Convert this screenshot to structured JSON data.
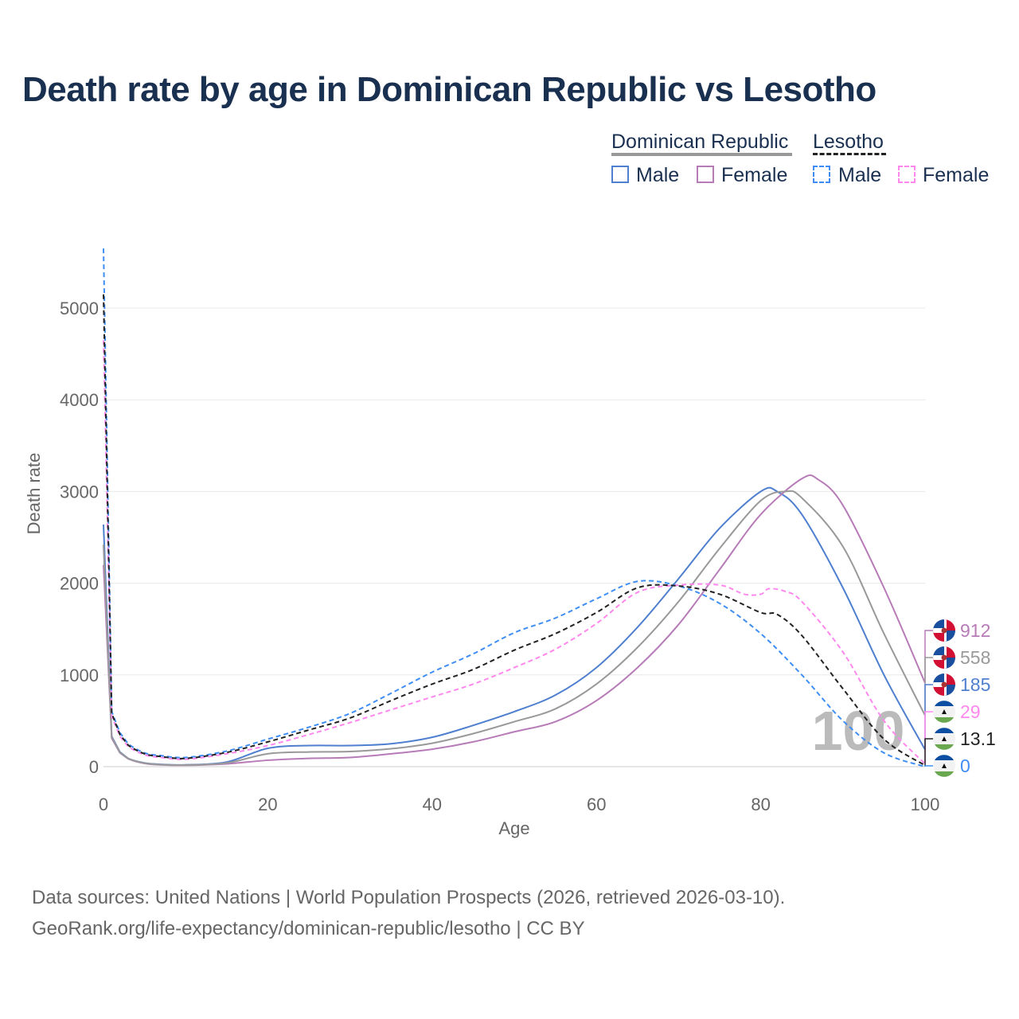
{
  "title": "Death rate by age in Dominican Republic vs Lesotho",
  "legend": {
    "countries": [
      {
        "name": "Dominican Republic",
        "color": "#999999"
      },
      {
        "name": "Lesotho",
        "color": "#222222"
      }
    ],
    "items": [
      "Male",
      "Female",
      "Male",
      "Female"
    ]
  },
  "footer": {
    "line1": "Data sources: United Nations | World Population Prospects (2026, retrieved 2026-03-10).",
    "line2": "GeoRank.org/life-expectancy/dominican-republic/lesotho | CC BY"
  },
  "watermark": "100",
  "chart_data": {
    "type": "line",
    "xlabel": "Age",
    "ylabel": "Death rate",
    "xlim": [
      0,
      100
    ],
    "ylim": [
      0,
      5700
    ],
    "xticks": [
      0,
      20,
      40,
      60,
      80,
      100
    ],
    "yticks": [
      0,
      1000,
      2000,
      3000,
      4000,
      5000
    ],
    "grid": true,
    "legend": "top-right",
    "series": [
      {
        "name": "Dominican Republic Male",
        "color": "#4f7fcf",
        "dash": false,
        "end_label": "185",
        "flag": "DR",
        "x": [
          0,
          1,
          2,
          3,
          5,
          7,
          10,
          15,
          20,
          25,
          30,
          35,
          40,
          45,
          50,
          55,
          60,
          65,
          70,
          75,
          80,
          82,
          85,
          90,
          95,
          100
        ],
        "y": [
          2640,
          330,
          160,
          90,
          40,
          25,
          20,
          50,
          200,
          230,
          230,
          250,
          320,
          450,
          600,
          780,
          1080,
          1520,
          2050,
          2600,
          3000,
          3000,
          2750,
          1950,
          1000,
          185
        ]
      },
      {
        "name": "Dominican Republic Female",
        "color": "#b77bb8",
        "dash": false,
        "end_label": "912",
        "flag": "DR",
        "x": [
          0,
          1,
          2,
          3,
          5,
          7,
          10,
          15,
          20,
          25,
          30,
          35,
          40,
          45,
          50,
          55,
          60,
          65,
          70,
          75,
          80,
          85,
          87,
          90,
          95,
          100
        ],
        "y": [
          2200,
          310,
          150,
          85,
          35,
          20,
          15,
          30,
          70,
          90,
          100,
          140,
          190,
          270,
          380,
          490,
          720,
          1080,
          1550,
          2150,
          2750,
          3140,
          3130,
          2850,
          1950,
          912
        ]
      },
      {
        "name": "Dominican Republic Total",
        "color": "#999999",
        "dash": false,
        "end_label": "558",
        "flag": "DR",
        "x": [
          0,
          1,
          2,
          3,
          5,
          7,
          10,
          15,
          20,
          25,
          30,
          35,
          40,
          45,
          50,
          55,
          60,
          65,
          70,
          75,
          80,
          83,
          85,
          90,
          95,
          100
        ],
        "y": [
          2420,
          320,
          155,
          88,
          38,
          22,
          18,
          40,
          140,
          160,
          165,
          195,
          255,
          360,
          490,
          630,
          900,
          1300,
          1800,
          2380,
          2900,
          3000,
          2930,
          2400,
          1450,
          558
        ]
      },
      {
        "name": "Lesotho Male",
        "color": "#3f8ef5",
        "dash": true,
        "end_label": "0",
        "flag": "LS",
        "x": [
          0,
          1,
          2,
          3,
          5,
          7,
          10,
          15,
          20,
          25,
          30,
          35,
          40,
          45,
          50,
          55,
          60,
          65,
          70,
          75,
          80,
          85,
          90,
          95,
          100
        ],
        "y": [
          5650,
          600,
          370,
          250,
          150,
          120,
          100,
          170,
          300,
          430,
          580,
          800,
          1030,
          1230,
          1460,
          1620,
          1830,
          2020,
          1970,
          1780,
          1450,
          1000,
          500,
          150,
          0
        ]
      },
      {
        "name": "Lesotho Female",
        "color": "#ff88ee",
        "dash": true,
        "end_label": "29",
        "flag": "LS",
        "x": [
          0,
          1,
          2,
          3,
          5,
          7,
          10,
          15,
          20,
          25,
          30,
          35,
          40,
          45,
          50,
          55,
          60,
          65,
          70,
          75,
          78,
          80,
          81,
          83,
          85,
          90,
          95,
          100
        ],
        "y": [
          4650,
          550,
          330,
          220,
          130,
          100,
          80,
          140,
          230,
          350,
          480,
          620,
          760,
          900,
          1080,
          1280,
          1560,
          1900,
          1980,
          1980,
          1880,
          1880,
          1940,
          1910,
          1800,
          1250,
          500,
          29
        ]
      },
      {
        "name": "Lesotho Total",
        "color": "#222222",
        "dash": true,
        "end_label": "13.1",
        "flag": "LS",
        "x": [
          0,
          1,
          2,
          3,
          5,
          7,
          10,
          15,
          20,
          25,
          30,
          35,
          40,
          45,
          50,
          55,
          60,
          65,
          70,
          75,
          80,
          82,
          85,
          90,
          95,
          100
        ],
        "y": [
          5150,
          580,
          350,
          235,
          140,
          110,
          90,
          155,
          270,
          400,
          530,
          720,
          900,
          1060,
          1270,
          1450,
          1680,
          1950,
          1970,
          1880,
          1680,
          1660,
          1430,
          850,
          300,
          13.1
        ]
      }
    ]
  }
}
